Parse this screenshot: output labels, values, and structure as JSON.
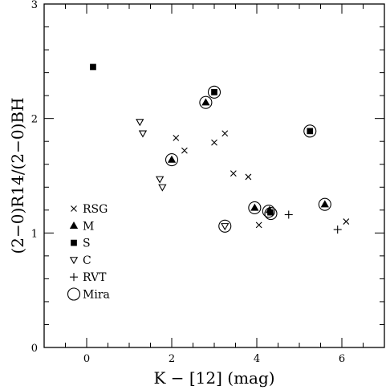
{
  "chart_data": {
    "type": "scatter",
    "title": "",
    "xlabel": "K − [12] (mag)",
    "ylabel": "(2−0)R14/(2−0)BH",
    "xlim": [
      -1,
      7
    ],
    "ylim": [
      0,
      3
    ],
    "x_ticks": [
      0,
      2,
      4,
      6
    ],
    "y_ticks": [
      0,
      1,
      2,
      3
    ],
    "x_tick_labels": [
      "0",
      "2",
      "4",
      "6"
    ],
    "y_tick_labels": [
      "0",
      "1",
      "2",
      "3"
    ],
    "grid": false,
    "legend_position": "left-lower",
    "series": [
      {
        "name": "RSG",
        "marker": "x",
        "points": [
          [
            2.1,
            1.83
          ],
          [
            2.3,
            1.72
          ],
          [
            3.0,
            1.79
          ],
          [
            3.25,
            1.87
          ],
          [
            3.45,
            1.52
          ],
          [
            3.8,
            1.49
          ],
          [
            4.05,
            1.07
          ],
          [
            6.1,
            1.1
          ]
        ]
      },
      {
        "name": "M",
        "marker": "filled-triangle",
        "points": [
          [
            2.0,
            1.64
          ],
          [
            2.8,
            2.14
          ],
          [
            3.95,
            1.22
          ],
          [
            4.3,
            1.2
          ],
          [
            5.6,
            1.25
          ]
        ]
      },
      {
        "name": "S",
        "marker": "filled-square",
        "points": [
          [
            0.15,
            2.45
          ],
          [
            3.0,
            2.23
          ],
          [
            5.25,
            1.89
          ],
          [
            4.32,
            1.18
          ]
        ]
      },
      {
        "name": "C",
        "marker": "open-triangle-down",
        "points": [
          [
            1.25,
            1.97
          ],
          [
            1.32,
            1.87
          ],
          [
            1.72,
            1.47
          ],
          [
            1.78,
            1.4
          ],
          [
            3.25,
            1.06
          ]
        ]
      },
      {
        "name": "RVT",
        "marker": "plus",
        "points": [
          [
            4.75,
            1.16
          ],
          [
            5.9,
            1.03
          ]
        ]
      },
      {
        "name": "Mira",
        "marker": "open-circle",
        "points": [
          [
            2.0,
            1.64
          ],
          [
            2.8,
            2.14
          ],
          [
            3.0,
            2.23
          ],
          [
            5.25,
            1.89
          ],
          [
            3.95,
            1.22
          ],
          [
            4.28,
            1.19
          ],
          [
            4.33,
            1.17
          ],
          [
            5.6,
            1.25
          ],
          [
            3.25,
            1.06
          ]
        ]
      }
    ]
  }
}
